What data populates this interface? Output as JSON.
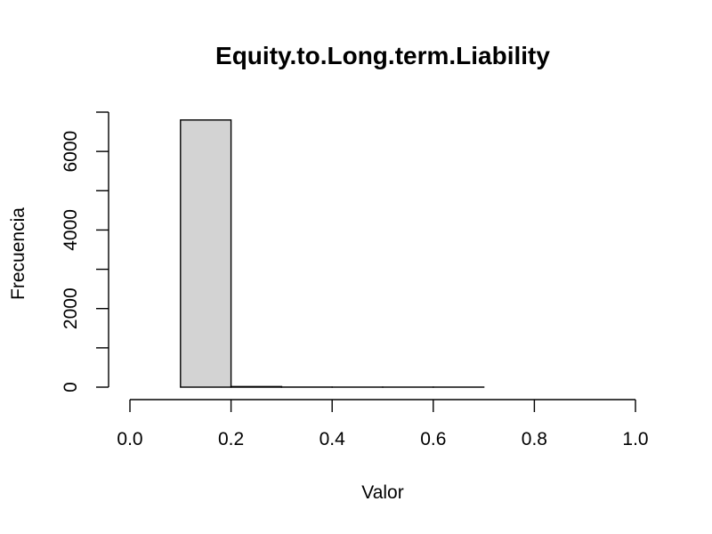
{
  "chart_data": {
    "type": "histogram",
    "title": "Equity.to.Long.term.Liability",
    "xlabel": "Valor",
    "ylabel": "Frecuencia",
    "bin_edges": [
      0.0,
      0.1,
      0.2,
      0.3,
      0.4,
      0.5,
      0.6,
      0.7,
      0.8,
      0.9,
      1.0
    ],
    "counts": [
      0,
      6800,
      15,
      2,
      1,
      1,
      1,
      0,
      0,
      0
    ],
    "bar_color": "#d3d3d3",
    "xlim": [
      0.0,
      1.0
    ],
    "ylim": [
      0,
      7000
    ],
    "x_ticks": [
      0.0,
      0.2,
      0.4,
      0.6,
      0.8,
      1.0
    ],
    "x_tick_labels": [
      "0.0",
      "0.2",
      "0.4",
      "0.6",
      "0.8",
      "1.0"
    ],
    "y_ticks": [
      0,
      1000,
      2000,
      3000,
      4000,
      5000,
      6000,
      7000
    ],
    "y_tick_labels": [
      "0",
      "",
      "2000",
      "",
      "4000",
      "",
      "6000",
      ""
    ],
    "grid": false,
    "legend": "none"
  }
}
